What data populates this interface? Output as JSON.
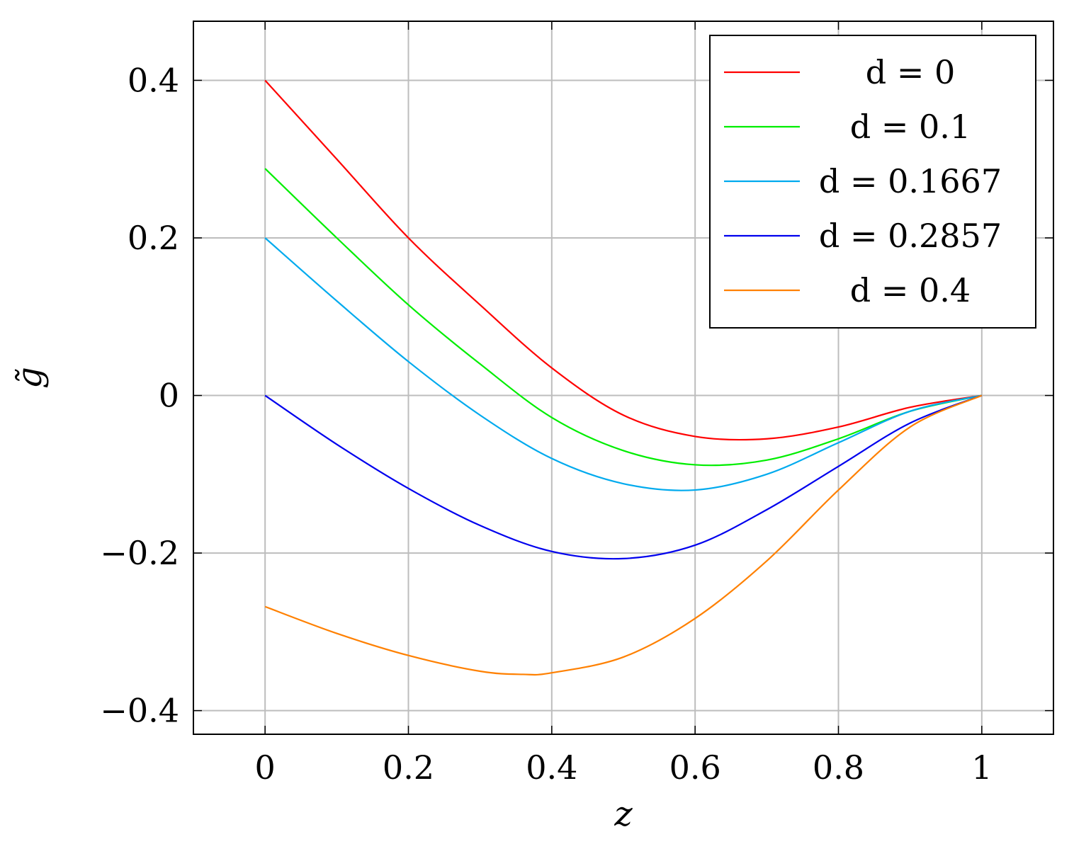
{
  "chart_data": {
    "type": "line",
    "title": "",
    "xlabel": "z",
    "ylabel": "g̃",
    "xlim": [
      -0.1,
      1.1
    ],
    "ylim": [
      -0.43,
      0.475
    ],
    "xticks": [
      0,
      0.2,
      0.4,
      0.6,
      0.8,
      1
    ],
    "xtick_labels": [
      "0",
      "0.2",
      "0.4",
      "0.6",
      "0.8",
      "1"
    ],
    "yticks": [
      -0.4,
      -0.2,
      0,
      0.2,
      0.4
    ],
    "ytick_labels": [
      "−0.4",
      "−0.2",
      "0",
      "0.2",
      "0.4"
    ],
    "grid": true,
    "legend_position": "top-right",
    "series": [
      {
        "name": "d = 0",
        "color": "#ff0000",
        "x": [
          0,
          0.1,
          0.2,
          0.3,
          0.4,
          0.5,
          0.6,
          0.7,
          0.8,
          0.9,
          1
        ],
        "y": [
          0.4,
          0.3,
          0.2,
          0.115,
          0.035,
          -0.025,
          -0.052,
          -0.055,
          -0.04,
          -0.015,
          0
        ]
      },
      {
        "name": "d = 0.1",
        "color": "#00ee00",
        "x": [
          0,
          0.1,
          0.2,
          0.3,
          0.4,
          0.5,
          0.6,
          0.7,
          0.8,
          0.9,
          1
        ],
        "y": [
          0.288,
          0.2,
          0.115,
          0.04,
          -0.028,
          -0.07,
          -0.088,
          -0.082,
          -0.055,
          -0.02,
          0
        ]
      },
      {
        "name": "d = 0.1667",
        "color": "#00aaee",
        "x": [
          0,
          0.1,
          0.2,
          0.3,
          0.4,
          0.5,
          0.6,
          0.7,
          0.8,
          0.9,
          1
        ],
        "y": [
          0.2,
          0.12,
          0.043,
          -0.025,
          -0.08,
          -0.112,
          -0.12,
          -0.1,
          -0.06,
          -0.02,
          0
        ]
      },
      {
        "name": "d = 0.2857",
        "color": "#0000ee",
        "x": [
          0,
          0.1,
          0.2,
          0.3,
          0.4,
          0.5,
          0.6,
          0.7,
          0.8,
          0.9,
          1
        ],
        "y": [
          0,
          -0.062,
          -0.118,
          -0.165,
          -0.198,
          -0.207,
          -0.19,
          -0.145,
          -0.09,
          -0.035,
          0
        ]
      },
      {
        "name": "d = 0.4",
        "color": "#ff8000",
        "x": [
          0,
          0.1,
          0.2,
          0.3,
          0.36,
          0.4,
          0.5,
          0.6,
          0.7,
          0.8,
          0.9,
          1
        ],
        "y": [
          -0.268,
          -0.302,
          -0.33,
          -0.35,
          -0.354,
          -0.352,
          -0.332,
          -0.283,
          -0.21,
          -0.12,
          -0.04,
          0
        ]
      }
    ]
  }
}
